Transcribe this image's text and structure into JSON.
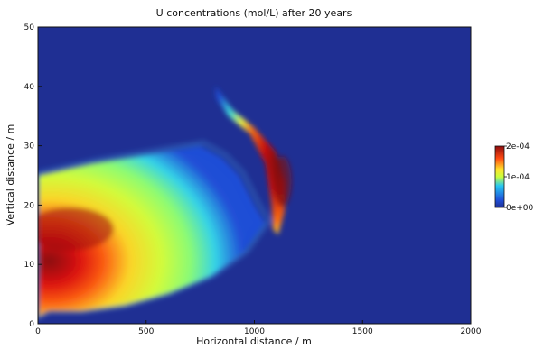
{
  "chart_data": {
    "type": "heatmap",
    "title": "U concentrations (mol/L) after 20 years",
    "xlabel": "Horizontal distance / m",
    "ylabel": "Vertical distance / m",
    "xlim": [
      0,
      2000
    ],
    "ylim": [
      0,
      50
    ],
    "xticks": [
      "0",
      "500",
      "1000",
      "1500",
      "2000"
    ],
    "yticks": [
      "0",
      "10",
      "20",
      "30",
      "40",
      "50"
    ],
    "grid": false,
    "colormap": "jet",
    "background_value": 0,
    "colorbar": {
      "min": 0,
      "max": 0.0002,
      "ticks": [
        "0e+00",
        "1e-04",
        "2e-04"
      ]
    },
    "plume_regions": [
      {
        "name": "main plume",
        "description_values_mol_per_L": {
          "peak": 0.00019,
          "peak_location": [
            150,
            16
          ],
          "outer_edge": 2e-05
        },
        "envelope": [
          [
            0,
            25
          ],
          [
            250,
            27
          ],
          [
            500,
            28.5
          ],
          [
            750,
            30
          ],
          [
            850,
            28
          ],
          [
            930,
            25
          ],
          [
            1000,
            20
          ],
          [
            1050,
            17
          ],
          [
            950,
            12
          ],
          [
            800,
            8
          ],
          [
            600,
            5
          ],
          [
            400,
            3
          ],
          [
            200,
            2
          ],
          [
            50,
            2
          ],
          [
            0,
            1
          ]
        ]
      },
      {
        "name": "front arc",
        "description_values_mol_per_L": {
          "peak": 0.0002,
          "peak_location": [
            1130,
            24
          ],
          "outer_edge": 3e-05
        },
        "envelope": [
          [
            820,
            40
          ],
          [
            900,
            36
          ],
          [
            1000,
            33
          ],
          [
            1100,
            29
          ],
          [
            1140,
            24
          ],
          [
            1140,
            19
          ],
          [
            1110,
            15
          ],
          [
            1085,
            16
          ],
          [
            1080,
            20
          ],
          [
            1050,
            27
          ],
          [
            980,
            32
          ],
          [
            880,
            35
          ],
          [
            825,
            38
          ]
        ]
      }
    ]
  }
}
